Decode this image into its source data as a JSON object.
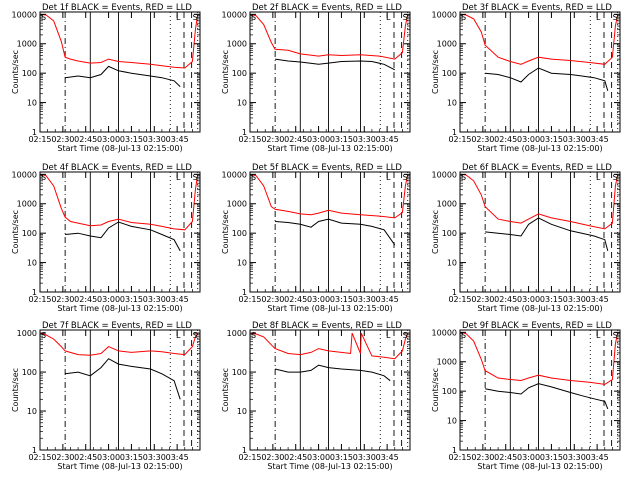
{
  "figure": {
    "colors": {
      "events": "#000000",
      "lld": "#ff0000",
      "axes": "#000000",
      "background": "#ffffff"
    },
    "x_tick_labels": [
      "02:15",
      "02:30",
      "02:45",
      "03:00",
      "03:15",
      "03:30",
      "03:45"
    ],
    "y_tick_labels": [
      "1",
      "10",
      "100",
      "1000",
      "10000"
    ],
    "ylabel": "Counts/sec",
    "xlabel": "Start Time (08-Jul-13 02:15:00)",
    "x_domain_minutes": [
      0,
      105
    ],
    "ylim_log10": [
      0,
      4.1
    ],
    "vertical_lines": [
      {
        "minute": 16.5,
        "style": "dashdot"
      },
      {
        "minute": 33,
        "style": "solid"
      },
      {
        "minute": 51.5,
        "style": "solid"
      },
      {
        "minute": 72.5,
        "style": "solid"
      },
      {
        "minute": 85.5,
        "style": "dotted"
      },
      {
        "minute": 94.5,
        "style": "dashed"
      },
      {
        "minute": 99.5,
        "style": "dashed"
      },
      {
        "minute": 103.5,
        "style": "dotted"
      }
    ],
    "marker_text": {
      "L": "L",
      "S": "S"
    }
  },
  "chart_data": [
    {
      "type": "line",
      "title": "Det 1f BLACK = Events, RED = LLD",
      "x_unit": "minutes since 02:15:00",
      "series": [
        {
          "name": "Events",
          "color": "#000000",
          "x": [
            16.5,
            25,
            33,
            40,
            45,
            51.5,
            60,
            72.5,
            80,
            88,
            92
          ],
          "y": [
            70,
            80,
            70,
            90,
            170,
            120,
            100,
            80,
            70,
            55,
            35
          ]
        },
        {
          "name": "LLD",
          "color": "#ff0000",
          "x": [
            0,
            4,
            9,
            14,
            16.5,
            20,
            25,
            33,
            40,
            45,
            51.5,
            60,
            72.5,
            80,
            88,
            95,
            100,
            102,
            103.5
          ],
          "y": [
            10000,
            9500,
            6000,
            1200,
            350,
            300,
            260,
            220,
            230,
            300,
            250,
            230,
            200,
            180,
            160,
            150,
            250,
            3000,
            10000
          ]
        }
      ],
      "ylim": [
        1,
        12000
      ],
      "yscale": "log"
    },
    {
      "type": "line",
      "title": "Det 2f BLACK = Events, RED = LLD",
      "x_unit": "minutes since 02:15:00",
      "series": [
        {
          "name": "Events",
          "color": "#000000",
          "x": [
            16.5,
            25,
            33,
            45,
            51.5,
            60,
            72.5,
            80,
            88,
            95
          ],
          "y": [
            300,
            260,
            240,
            200,
            220,
            250,
            260,
            250,
            200,
            130
          ]
        },
        {
          "name": "LLD",
          "color": "#ff0000",
          "x": [
            0,
            4,
            9,
            14,
            16.5,
            25,
            33,
            45,
            51.5,
            60,
            72.5,
            85,
            95,
            100,
            102,
            103.5
          ],
          "y": [
            10000,
            9000,
            4500,
            1100,
            650,
            600,
            450,
            380,
            420,
            400,
            420,
            380,
            300,
            500,
            4000,
            10000
          ]
        }
      ],
      "ylim": [
        1,
        12000
      ],
      "yscale": "log"
    },
    {
      "type": "line",
      "title": "Det 3f BLACK = Events, RED = LLD",
      "x_unit": "minutes since 02:15:00",
      "series": [
        {
          "name": "Events",
          "color": "#000000",
          "x": [
            16.5,
            25,
            33,
            40,
            45,
            51.5,
            60,
            72.5,
            80,
            88,
            95,
            97
          ],
          "y": [
            100,
            90,
            70,
            50,
            90,
            150,
            100,
            90,
            80,
            70,
            55,
            25
          ]
        },
        {
          "name": "LLD",
          "color": "#ff0000",
          "x": [
            0,
            4,
            9,
            14,
            16.5,
            25,
            33,
            40,
            45,
            51.5,
            60,
            72.5,
            85,
            95,
            100,
            102,
            103.5
          ],
          "y": [
            10000,
            9500,
            7000,
            2500,
            900,
            350,
            250,
            200,
            260,
            350,
            300,
            270,
            230,
            200,
            350,
            4000,
            10000
          ]
        }
      ],
      "ylim": [
        1,
        12000
      ],
      "yscale": "log"
    },
    {
      "type": "line",
      "title": "Det 4f BLACK = Events, RED = LLD",
      "x_unit": "minutes since 02:15:00",
      "series": [
        {
          "name": "Events",
          "color": "#000000",
          "x": [
            16.5,
            25,
            33,
            40,
            45,
            51.5,
            60,
            72.5,
            80,
            88,
            92
          ],
          "y": [
            90,
            100,
            80,
            70,
            150,
            240,
            170,
            130,
            90,
            60,
            25
          ]
        },
        {
          "name": "LLD",
          "color": "#ff0000",
          "x": [
            0,
            4,
            9,
            14,
            16.5,
            20,
            25,
            33,
            40,
            45,
            51.5,
            60,
            72.5,
            80,
            88,
            95,
            100,
            102,
            103.5
          ],
          "y": [
            10000,
            9000,
            4000,
            700,
            350,
            250,
            220,
            180,
            190,
            250,
            300,
            230,
            200,
            170,
            140,
            130,
            250,
            3000,
            10000
          ]
        }
      ],
      "ylim": [
        1,
        12000
      ],
      "yscale": "log"
    },
    {
      "type": "line",
      "title": "Det 5f BLACK = Events, RED = LLD",
      "x_unit": "minutes since 02:15:00",
      "series": [
        {
          "name": "Events",
          "color": "#000000",
          "x": [
            16.5,
            25,
            33,
            40,
            45,
            51.5,
            60,
            72.5,
            80,
            88,
            95
          ],
          "y": [
            250,
            230,
            200,
            160,
            250,
            300,
            220,
            200,
            170,
            130,
            40
          ]
        },
        {
          "name": "LLD",
          "color": "#ff0000",
          "x": [
            0,
            4,
            9,
            14,
            16.5,
            25,
            33,
            40,
            45,
            51.5,
            60,
            72.5,
            85,
            95,
            100,
            102,
            103.5
          ],
          "y": [
            10000,
            9000,
            4000,
            800,
            650,
            550,
            450,
            420,
            480,
            600,
            480,
            420,
            380,
            330,
            500,
            4000,
            10000
          ]
        }
      ],
      "ylim": [
        1,
        12000
      ],
      "yscale": "log"
    },
    {
      "type": "line",
      "title": "Det 6f BLACK = Events, RED = LLD",
      "x_unit": "minutes since 02:15:00",
      "series": [
        {
          "name": "Events",
          "color": "#000000",
          "x": [
            16.5,
            25,
            33,
            40,
            45,
            51.5,
            60,
            72.5,
            80,
            88,
            95,
            97
          ],
          "y": [
            110,
            100,
            90,
            80,
            200,
            330,
            200,
            120,
            100,
            80,
            60,
            25
          ]
        },
        {
          "name": "LLD",
          "color": "#ff0000",
          "x": [
            0,
            4,
            9,
            14,
            16.5,
            25,
            33,
            40,
            45,
            51.5,
            60,
            72.5,
            85,
            95,
            100,
            102,
            103.5
          ],
          "y": [
            10000,
            9500,
            6000,
            2000,
            800,
            300,
            250,
            220,
            300,
            450,
            330,
            250,
            180,
            140,
            220,
            4000,
            10000
          ]
        }
      ],
      "ylim": [
        1,
        12000
      ],
      "yscale": "log"
    },
    {
      "type": "line",
      "title": "Det 7f BLACK = Events, RED = LLD",
      "x_unit": "minutes since 02:15:00",
      "series": [
        {
          "name": "Events",
          "color": "#000000",
          "x": [
            16.5,
            25,
            33,
            40,
            45,
            51.5,
            60,
            72.5,
            80,
            88,
            92
          ],
          "y": [
            90,
            100,
            80,
            130,
            220,
            160,
            140,
            120,
            90,
            60,
            20
          ]
        },
        {
          "name": "LLD",
          "color": "#ff0000",
          "x": [
            0,
            4,
            9,
            14,
            16.5,
            25,
            33,
            40,
            45,
            51.5,
            60,
            72.5,
            80,
            88,
            95,
            100,
            102,
            103.5
          ],
          "y": [
            1000,
            900,
            700,
            450,
            350,
            280,
            270,
            300,
            450,
            350,
            320,
            350,
            330,
            300,
            280,
            450,
            800,
            1000
          ]
        }
      ],
      "ylim": [
        1,
        1200
      ],
      "yscale": "log"
    },
    {
      "type": "line",
      "title": "Det 8f BLACK = Events, RED = LLD",
      "x_unit": "minutes since 02:15:00",
      "series": [
        {
          "name": "Events",
          "color": "#000000",
          "x": [
            16.5,
            25,
            33,
            40,
            45,
            51.5,
            60,
            72.5,
            80,
            88,
            92
          ],
          "y": [
            120,
            100,
            100,
            110,
            150,
            130,
            120,
            110,
            100,
            80,
            60
          ]
        },
        {
          "name": "LLD",
          "color": "#ff0000",
          "x": [
            0,
            4,
            9,
            14,
            16.5,
            25,
            33,
            40,
            45,
            51.5,
            60,
            66,
            67,
            72.5,
            73,
            80,
            88,
            95,
            100,
            102,
            103.5
          ],
          "y": [
            1000,
            950,
            800,
            500,
            400,
            300,
            280,
            320,
            400,
            350,
            320,
            300,
            1000,
            300,
            1000,
            260,
            240,
            220,
            350,
            700,
            1000
          ]
        }
      ],
      "ylim": [
        1,
        1200
      ],
      "yscale": "log"
    },
    {
      "type": "line",
      "title": "Det 9f BLACK = Events, RED = LLD",
      "x_unit": "minutes since 02:15:00",
      "series": [
        {
          "name": "Events",
          "color": "#000000",
          "x": [
            16.5,
            25,
            33,
            40,
            45,
            51.5,
            60,
            72.5,
            80,
            88,
            95,
            97
          ],
          "y": [
            120,
            100,
            90,
            80,
            130,
            180,
            140,
            90,
            70,
            55,
            45,
            25
          ]
        },
        {
          "name": "LLD",
          "color": "#ff0000",
          "x": [
            0,
            4,
            9,
            14,
            16.5,
            25,
            33,
            40,
            45,
            51.5,
            60,
            72.5,
            85,
            95,
            100,
            102,
            103.5
          ],
          "y": [
            10000,
            9000,
            5000,
            1200,
            500,
            280,
            250,
            230,
            280,
            350,
            280,
            230,
            200,
            170,
            250,
            4000,
            10000
          ]
        }
      ],
      "ylim": [
        1,
        12000
      ],
      "yscale": "log"
    }
  ]
}
